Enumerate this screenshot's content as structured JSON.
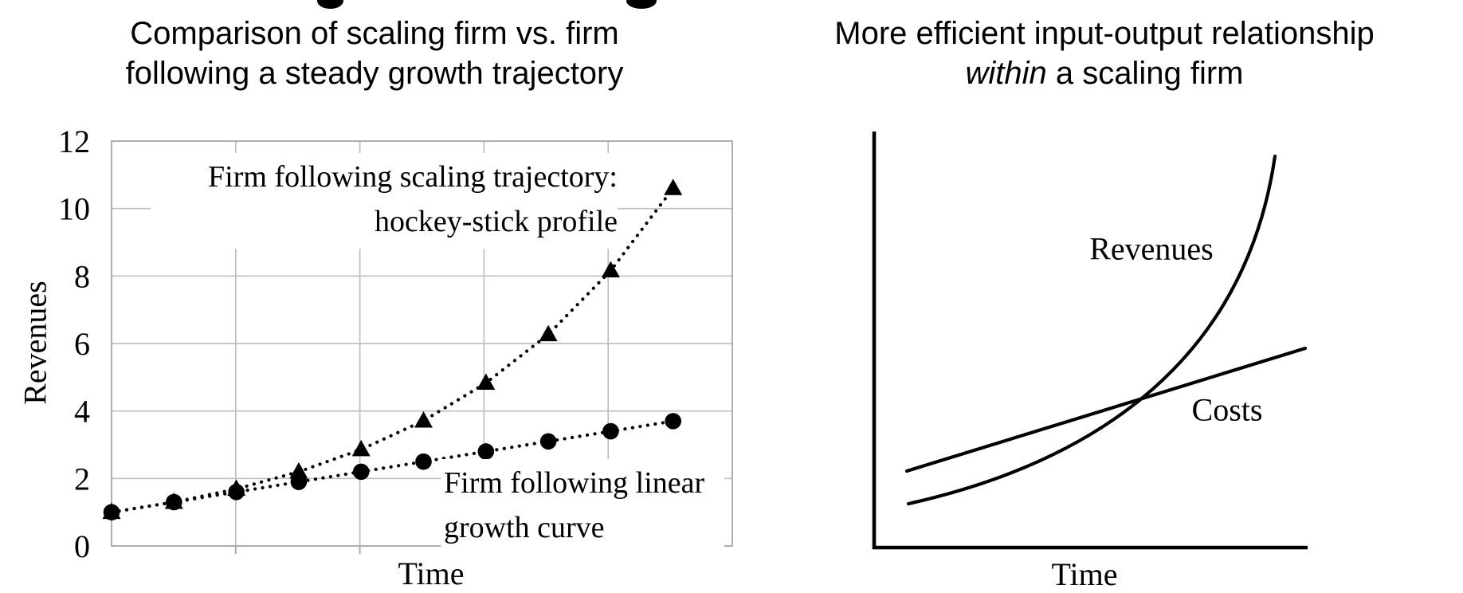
{
  "figure": {
    "background": "#ffffff",
    "text_color": "#000000",
    "gridline_color": "#bfbfbf",
    "axis_border_color": "#a6a6a6",
    "series_color": "#000000"
  },
  "left_chart": {
    "title_line1": "Comparison of scaling firm vs. firm",
    "title_line2": "following a steady growth trajectory",
    "ylabel": "Revenues",
    "xlabel": "Time",
    "annotation_scaling_line1": "Firm following scaling trajectory:",
    "annotation_scaling_line2": "hockey-stick profile",
    "annotation_linear_line1": "Firm following linear",
    "annotation_linear_line2": "growth curve"
  },
  "right_chart": {
    "title_line1": "More efficient input-output relationship",
    "title_line2_italic": "within",
    "title_line2_rest": " a scaling firm",
    "revenues_label": "Revenues",
    "costs_label": "Costs",
    "xlabel": "Time"
  },
  "chart_data": [
    {
      "type": "line",
      "title": "Comparison of scaling firm vs. firm following a steady growth trajectory",
      "xlabel": "Time",
      "ylabel": "Revenues",
      "x": [
        1,
        2,
        3,
        4,
        5,
        6,
        7,
        8,
        9,
        10
      ],
      "ylim": [
        0,
        12
      ],
      "ytick_interval": 2,
      "x_grid_intervals": 5,
      "grid": true,
      "legend_position": "none",
      "series": [
        {
          "name": "Firm following scaling trajectory: hockey-stick profile",
          "marker": "triangle",
          "line_style": "dotted",
          "values": [
            1.0,
            1.3,
            1.69,
            2.2,
            2.86,
            3.71,
            4.83,
            6.27,
            8.16,
            10.6
          ]
        },
        {
          "name": "Firm following linear growth curve",
          "marker": "circle",
          "line_style": "dotted",
          "values": [
            1.0,
            1.3,
            1.6,
            1.9,
            2.2,
            2.5,
            2.8,
            3.1,
            3.4,
            3.7
          ]
        }
      ]
    },
    {
      "type": "line",
      "title": "More efficient input-output relationship within a scaling firm",
      "xlabel": "Time",
      "ylabel": "",
      "grid": false,
      "axis_tick_labels": false,
      "series": [
        {
          "name": "Revenues",
          "shape": "exponential hockey-stick curve rising steeply at right"
        },
        {
          "name": "Costs",
          "shape": "straight line with gentle upward slope"
        }
      ],
      "annotation": "Revenues curve starts below Costs line and crosses above it partway along the Time axis"
    }
  ]
}
